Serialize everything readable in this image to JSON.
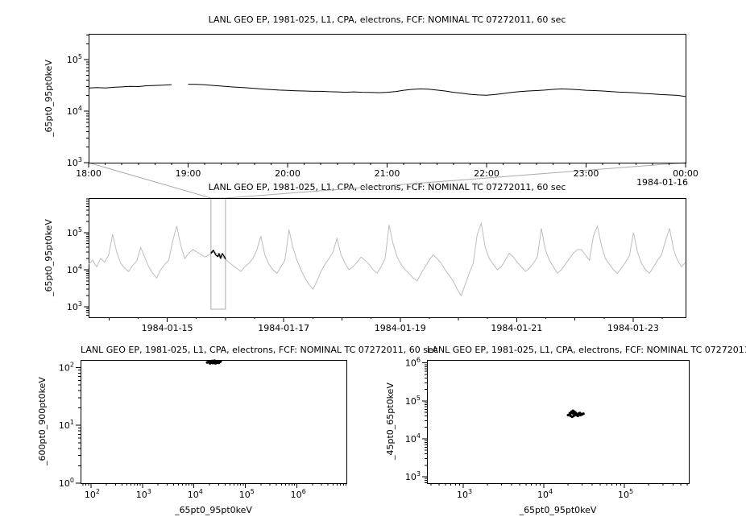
{
  "connector": {
    "color": "#aaaaaa"
  },
  "chart_data": [
    {
      "id": "overview-timeseries",
      "type": "line",
      "title": "LANL GEO EP, 1981-025, L1, CPA, electrons, FCF: NOMINAL TC 07272011, 60 sec",
      "ylabel": "_65pt0_95pt0keV",
      "xlabel": "",
      "y_scale": "log",
      "ylim": [
        1000,
        316000
      ],
      "x_ticks": [
        "18:00",
        "19:00",
        "20:00",
        "21:00",
        "22:00",
        "23:00",
        "00:00"
      ],
      "x_date_label": "1984-01-16",
      "x_start_min": 0,
      "x_step_min": 5,
      "x_end_min": 360,
      "value_unit": 1000,
      "color": "#000000",
      "values_k": [
        28,
        28.6,
        28.2,
        29,
        29.5,
        30.2,
        30,
        31,
        31.5,
        32,
        32.6,
        null,
        33.2,
        33,
        32.4,
        31.5,
        30.6,
        29.6,
        29,
        28.4,
        27.6,
        26.8,
        26.2,
        25.6,
        25.2,
        24.8,
        24.6,
        24.2,
        24.2,
        23.8,
        23.6,
        23.2,
        23.6,
        23.2,
        23,
        22.8,
        23.2,
        24,
        25.4,
        26.4,
        27,
        26.6,
        25.6,
        24.6,
        23.2,
        22.2,
        21.2,
        20.6,
        20.4,
        21,
        22,
        23,
        24,
        24.6,
        25,
        25.6,
        26.4,
        27,
        26.6,
        26,
        25.4,
        25,
        24.6,
        24,
        23.4,
        23,
        22.6,
        22,
        21.6,
        21,
        20.6,
        20.2,
        19.2
      ]
    },
    {
      "id": "context-timeseries",
      "type": "line",
      "title": "LANL GEO EP, 1981-025, L1, CPA, electrons, FCF: NOMINAL TC 07272011, 60 sec",
      "ylabel": "_65pt0_95pt0keV",
      "xlabel": "",
      "y_scale": "log",
      "ylim": [
        525,
        850000
      ],
      "xlim_days": [
        13.65,
        23.9
      ],
      "x_tick_days": [
        15,
        17,
        19,
        21,
        23
      ],
      "x_tick_labels": [
        "1984-01-15",
        "1984-01-17",
        "1984-01-19",
        "1984-01-21",
        "1984-01-23"
      ],
      "x_start_day": 13.65,
      "x_step_day": 0.06879,
      "value_unit": 1000,
      "color": "#bdbdbd",
      "highlight": {
        "day_range": [
          15.75,
          16.0
        ],
        "color": "#000000",
        "source": "overview-timeseries"
      },
      "values_k": [
        14,
        18,
        12,
        20,
        16,
        25,
        90,
        30,
        15,
        11,
        9,
        13,
        17,
        40,
        22,
        12,
        8,
        6,
        10,
        14,
        18,
        60,
        150,
        45,
        20,
        28,
        35,
        30,
        26,
        22,
        25,
        30,
        28,
        24,
        20,
        16,
        13,
        11,
        9,
        12,
        15,
        20,
        35,
        80,
        25,
        14,
        10,
        8,
        12,
        18,
        120,
        40,
        18,
        10,
        6,
        4,
        3,
        5,
        9,
        14,
        20,
        30,
        70,
        25,
        15,
        10,
        12,
        16,
        22,
        18,
        14,
        10,
        8,
        12,
        20,
        160,
        50,
        22,
        14,
        10,
        8,
        6,
        5,
        8,
        12,
        18,
        25,
        20,
        15,
        10,
        7,
        5,
        3,
        2,
        4,
        8,
        15,
        90,
        180,
        40,
        20,
        14,
        10,
        12,
        18,
        28,
        22,
        16,
        12,
        9,
        11,
        15,
        22,
        130,
        35,
        18,
        12,
        8,
        10,
        14,
        20,
        28,
        35,
        35,
        25,
        18,
        80,
        150,
        45,
        20,
        14,
        10,
        8,
        11,
        16,
        24,
        100,
        30,
        15,
        10,
        8,
        12,
        18,
        25,
        60,
        130,
        35,
        18,
        12,
        16
      ]
    },
    {
      "id": "scatter-600-900",
      "type": "scatter",
      "title": "LANL GEO EP, 1981-025, L1, CPA, electrons, FCF: NOMINAL TC 07272011, 60 sec",
      "xlabel": "_65pt0_95pt0keV",
      "ylabel": "_600pt0_900pt0keV",
      "x_scale": "log",
      "y_scale": "log",
      "xlim": [
        63,
        9100000
      ],
      "ylim": [
        1,
        135
      ],
      "points": [
        [
          18000,
          122
        ],
        [
          19000,
          125
        ],
        [
          20000,
          120
        ],
        [
          20500,
          118
        ],
        [
          21000,
          127
        ],
        [
          21500,
          121
        ],
        [
          22000,
          123
        ],
        [
          22500,
          130
        ],
        [
          23000,
          126
        ],
        [
          23200,
          119
        ],
        [
          23500,
          122
        ],
        [
          24000,
          128
        ],
        [
          24500,
          124
        ],
        [
          24800,
          131
        ],
        [
          25000,
          120
        ],
        [
          25500,
          126
        ],
        [
          26000,
          130
        ],
        [
          26200,
          118
        ],
        [
          26500,
          125
        ],
        [
          27000,
          122
        ],
        [
          27500,
          127
        ],
        [
          28000,
          124
        ],
        [
          28200,
          121
        ],
        [
          28500,
          129
        ],
        [
          29000,
          126
        ],
        [
          30000,
          123
        ],
        [
          30500,
          120
        ],
        [
          31000,
          127
        ],
        [
          32000,
          125
        ],
        [
          33000,
          128
        ]
      ]
    },
    {
      "id": "scatter-45-65",
      "type": "scatter",
      "title": "LANL GEO EP, 1981-025, L1, CPA, electrons, FCF: NOMINAL TC 07272011, 60 sec",
      "xlabel": "_65pt0_95pt0keV",
      "ylabel": "_45pt0_65pt0keV",
      "x_scale": "log",
      "y_scale": "log",
      "xlim": [
        355,
        630000
      ],
      "ylim": [
        676,
        1200000
      ],
      "points": [
        [
          20000,
          42000
        ],
        [
          21000,
          47000
        ],
        [
          22000,
          52000
        ],
        [
          23000,
          55000
        ],
        [
          24000,
          52000
        ],
        [
          25000,
          48000
        ],
        [
          24500,
          43000
        ],
        [
          23500,
          40000
        ],
        [
          22500,
          38000
        ],
        [
          21500,
          40000
        ],
        [
          21000,
          44000
        ],
        [
          22000,
          48000
        ],
        [
          23000,
          50000
        ],
        [
          24000,
          49000
        ],
        [
          25000,
          45000
        ],
        [
          26000,
          43000
        ],
        [
          27000,
          46000
        ],
        [
          28000,
          48000
        ],
        [
          29000,
          45000
        ],
        [
          30000,
          44000
        ],
        [
          31000,
          46000
        ],
        [
          28500,
          42000
        ],
        [
          26500,
          40000
        ],
        [
          25500,
          42000
        ],
        [
          23800,
          45000
        ],
        [
          22800,
          47000
        ]
      ]
    }
  ]
}
